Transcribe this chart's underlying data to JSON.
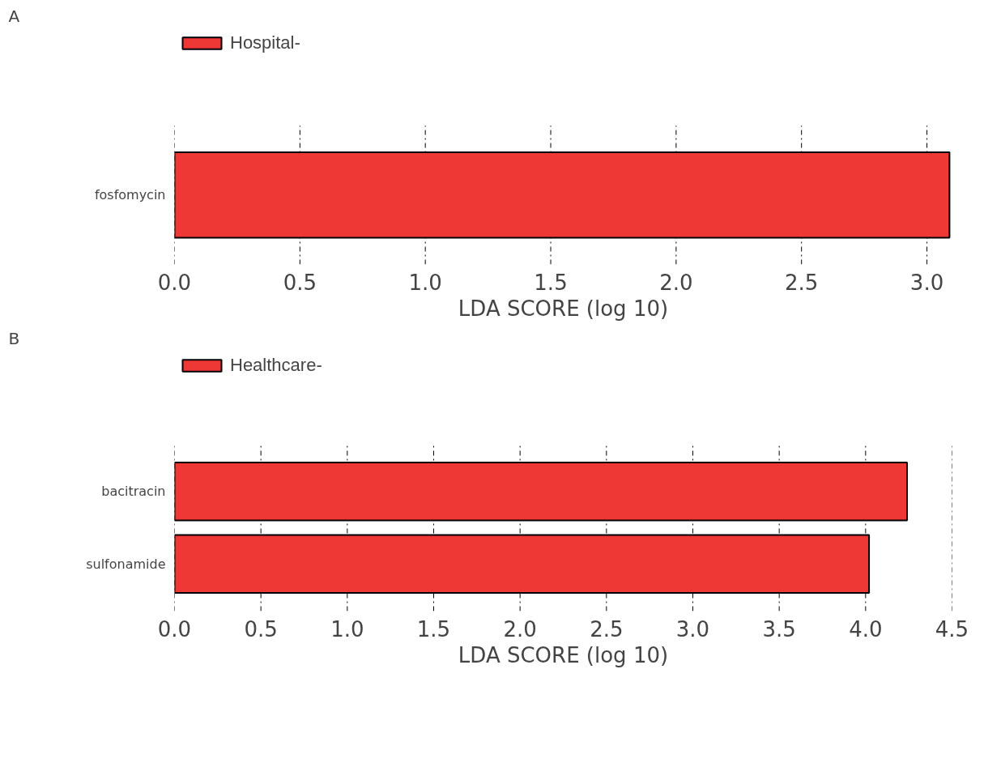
{
  "chart_data": [
    {
      "type": "bar",
      "orientation": "horizontal",
      "annotations": [
        "A"
      ],
      "xlabel": "LDA SCORE (log 10)",
      "categories": [
        "fosfomycin"
      ],
      "series": [
        {
          "name": "Hospital-",
          "color": "#ee3835",
          "values": [
            3.09
          ]
        }
      ],
      "xlim": [
        0,
        3.1
      ],
      "xticks": [
        {
          "value": 0,
          "label": "0.0"
        },
        0.5,
        {
          "value": 1,
          "label": "1.0"
        },
        1.5,
        {
          "value": 2,
          "label": "2.0"
        },
        2.5,
        {
          "value": 3,
          "label": "3.0"
        }
      ],
      "grid": "x",
      "legend": "top left"
    },
    {
      "type": "bar",
      "orientation": "horizontal",
      "annotations": [
        "B"
      ],
      "xlabel": "LDA SCORE (log 10)",
      "categories": [
        "bacitracin",
        "sulfonamide"
      ],
      "series": [
        {
          "name": "Healthcare-",
          "color": "#ee3835",
          "values": [
            4.24,
            4.02
          ]
        }
      ],
      "xlim": [
        0,
        4.5
      ],
      "xticks": [
        {
          "value": 0,
          "label": "0.0"
        },
        0.5,
        {
          "value": 1,
          "label": "1.0"
        },
        1.5,
        {
          "value": 2,
          "label": "2.0"
        },
        2.5,
        {
          "value": 3,
          "label": "3.0"
        },
        3.5,
        {
          "value": 4,
          "label": "4.0"
        },
        4.5
      ],
      "grid": "x",
      "legend": "top left"
    }
  ]
}
